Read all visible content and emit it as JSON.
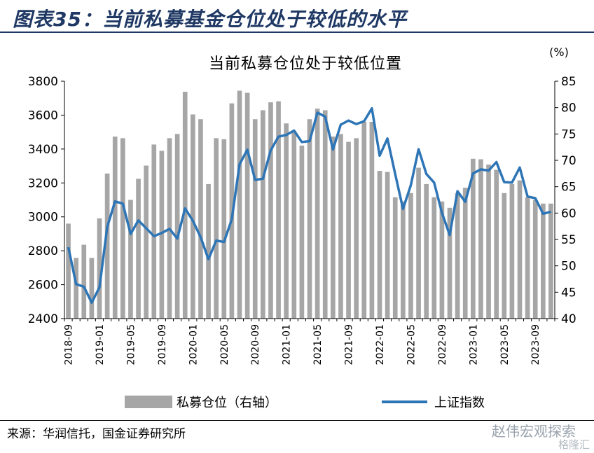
{
  "figure": {
    "title": "图表35：当前私募基金仓位处于较低的水平",
    "source": "来源：华润信托，国金证券研究所",
    "watermark": "赵伟宏观探索",
    "watermark_sub": "格隆汇"
  },
  "chart_data": {
    "type": "bar+line",
    "title": "当前私募仓位处于较低位置",
    "right_unit": "(%)",
    "x": [
      "2018-09",
      "2018-10",
      "2018-11",
      "2018-12",
      "2019-01",
      "2019-02",
      "2019-03",
      "2019-04",
      "2019-05",
      "2019-06",
      "2019-07",
      "2019-08",
      "2019-09",
      "2019-10",
      "2019-11",
      "2019-12",
      "2020-01",
      "2020-02",
      "2020-03",
      "2020-04",
      "2020-05",
      "2020-06",
      "2020-07",
      "2020-08",
      "2020-09",
      "2020-10",
      "2020-11",
      "2020-12",
      "2021-01",
      "2021-02",
      "2021-03",
      "2021-04",
      "2021-05",
      "2021-06",
      "2021-07",
      "2021-08",
      "2021-09",
      "2021-10",
      "2021-11",
      "2021-12",
      "2022-01",
      "2022-02",
      "2022-03",
      "2022-04",
      "2022-05",
      "2022-06",
      "2022-07",
      "2022-08",
      "2022-09",
      "2022-10",
      "2022-11",
      "2022-12",
      "2023-01",
      "2023-02",
      "2023-03",
      "2023-04",
      "2023-05",
      "2023-06",
      "2023-07",
      "2023-08",
      "2023-09",
      "2023-10",
      "2023-11"
    ],
    "x_tick_labels": [
      "2018-09",
      "2019-01",
      "2019-05",
      "2019-09",
      "2020-01",
      "2020-05",
      "2020-09",
      "2021-01",
      "2021-05",
      "2021-09",
      "2022-01",
      "2022-05",
      "2022-09",
      "2023-01",
      "2023-05",
      "2023-09"
    ],
    "left_axis": {
      "ylim": [
        2400,
        3800
      ],
      "ticks": [
        2400,
        2600,
        2800,
        3000,
        3200,
        3400,
        3600,
        3800
      ]
    },
    "right_axis": {
      "ylim": [
        40,
        85
      ],
      "ticks": [
        40,
        45,
        50,
        55,
        60,
        65,
        70,
        75,
        80,
        85
      ]
    },
    "series": [
      {
        "name": "私募仓位（右轴）",
        "type": "bar",
        "axis": "right",
        "color": "#a6a6a6",
        "values": [
          58,
          51.5,
          54,
          51.5,
          59,
          67.5,
          74.5,
          74.2,
          62.5,
          66.5,
          69,
          73,
          71.8,
          74.2,
          75,
          83,
          78.7,
          77.8,
          65.5,
          74.2,
          74,
          80.8,
          83.2,
          82.8,
          77.8,
          79.5,
          81,
          81.2,
          77,
          75.5,
          72.8,
          77.8,
          79.8,
          79.5,
          74.5,
          75,
          73.5,
          74.2,
          77.3,
          77.3,
          68,
          67.8,
          63,
          62.2,
          63.8,
          68.6,
          65.5,
          63,
          62.2,
          61,
          63.8,
          64.8,
          70.3,
          70.2,
          69.2,
          68.2,
          63.8,
          65.5,
          66.2,
          63,
          62.5,
          61.8,
          61.8
        ]
      },
      {
        "name": "上证指数",
        "type": "line",
        "axis": "left",
        "color": "#2e75b6",
        "values": [
          2821,
          2603,
          2588,
          2494,
          2584,
          2941,
          3091,
          3078,
          2899,
          2979,
          2933,
          2886,
          2905,
          2929,
          2872,
          3050,
          2977,
          2880,
          2750,
          2860,
          2852,
          2985,
          3310,
          3396,
          3218,
          3225,
          3392,
          3473,
          3483,
          3509,
          3441,
          3447,
          3615,
          3591,
          3397,
          3544,
          3568,
          3547,
          3564,
          3640,
          3361,
          3462,
          3252,
          3047,
          3186,
          3399,
          3253,
          3202,
          3024,
          2893,
          3151,
          3089,
          3256,
          3280,
          3273,
          3323,
          3205,
          3202,
          3291,
          3120,
          3110,
          3018,
          3030
        ]
      }
    ]
  }
}
